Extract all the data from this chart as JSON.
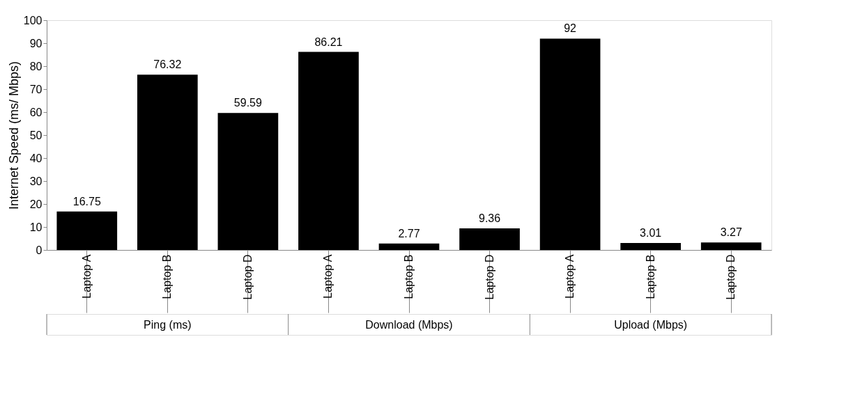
{
  "chart_data": {
    "type": "bar",
    "ylabel": "Internet Speed (ms/ Mbps)",
    "categories": [
      "Laptop A",
      "Laptop B",
      "Laptop D",
      "Laptop A",
      "Laptop B",
      "Laptop D",
      "Laptop A",
      "Laptop B",
      "Laptop D"
    ],
    "values": [
      16.75,
      76.32,
      59.59,
      86.21,
      2.77,
      9.36,
      92,
      3.01,
      3.27
    ],
    "color": "#000000",
    "ylim": [
      0,
      100
    ],
    "yticks": [
      0,
      10,
      20,
      30,
      40,
      50,
      60,
      70,
      80,
      90,
      100
    ],
    "grid": false,
    "data_labels": true,
    "annotations": [
      "Ping (ms)",
      "Download (Mbps)",
      "Upload (Mbps)"
    ]
  }
}
